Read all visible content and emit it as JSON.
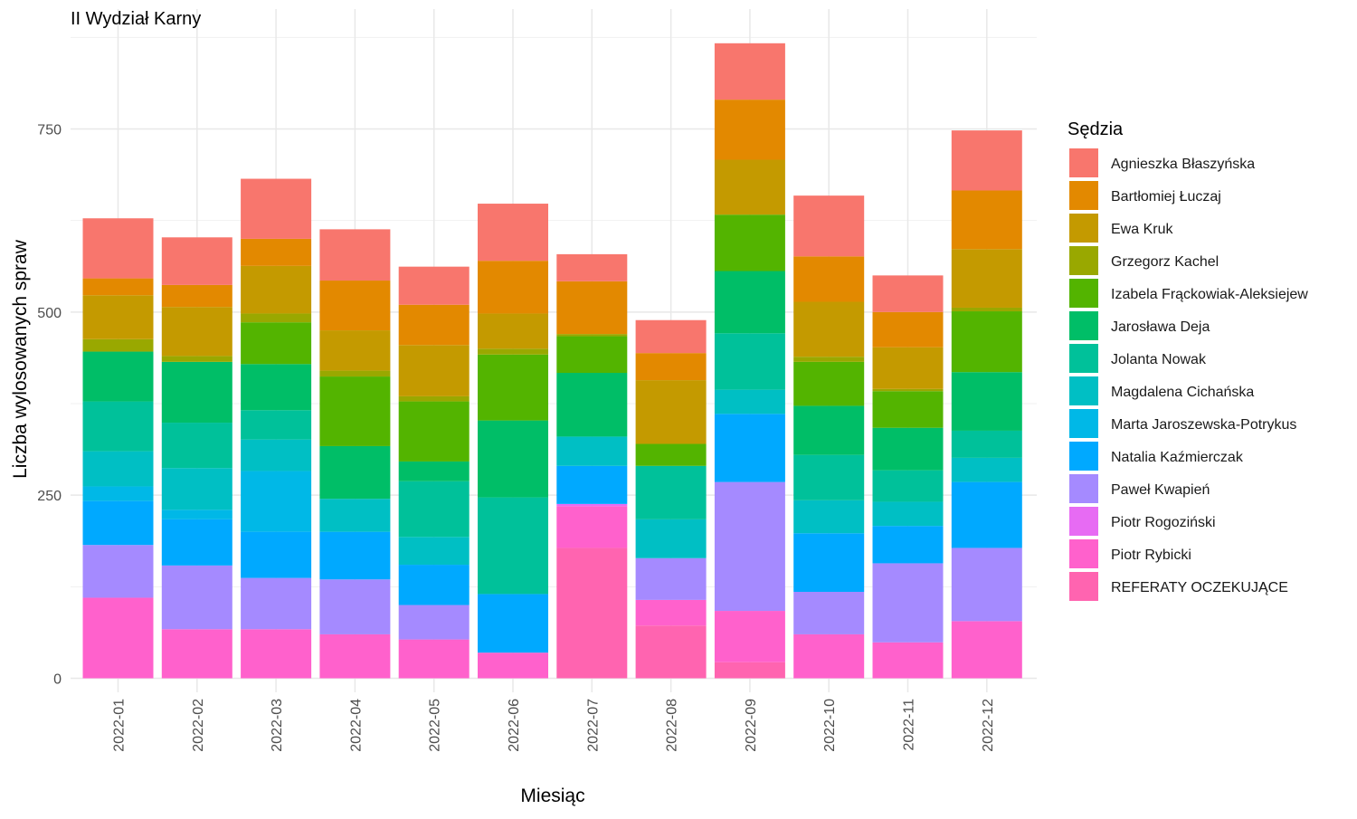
{
  "chart_data": {
    "type": "bar",
    "stacked": true,
    "title": "II Wydział Karny",
    "xlabel": "Miesiąc",
    "ylabel": "Liczba wylosowanych spraw",
    "ylim": [
      0,
      890
    ],
    "yticks": [
      0,
      250,
      500,
      750
    ],
    "grid": true,
    "legend": {
      "title": "Sędzia",
      "position": "right"
    },
    "categories": [
      "2022-01",
      "2022-02",
      "2022-03",
      "2022-04",
      "2022-05",
      "2022-06",
      "2022-07",
      "2022-08",
      "2022-09",
      "2022-10",
      "2022-11",
      "2022-12"
    ],
    "series": [
      {
        "name": "REFERATY OCZEKUJĄCE",
        "color": "#FF64B0",
        "values": [
          0,
          0,
          0,
          0,
          0,
          0,
          178,
          72,
          22,
          0,
          0,
          0
        ]
      },
      {
        "name": "Piotr Rybicki",
        "color": "#FF61CC",
        "values": [
          110,
          67,
          67,
          60,
          53,
          35,
          57,
          35,
          70,
          60,
          49,
          78
        ]
      },
      {
        "name": "Piotr Rogoziński",
        "color": "#E76BF3",
        "values": [
          0,
          0,
          0,
          0,
          0,
          0,
          3,
          0,
          0,
          0,
          0,
          0
        ]
      },
      {
        "name": "Paweł Kwapień",
        "color": "#A58AFF",
        "values": [
          72,
          87,
          70,
          75,
          47,
          0,
          0,
          57,
          176,
          58,
          108,
          100
        ]
      },
      {
        "name": "Natalia Kaźmierczak",
        "color": "#00A9FF",
        "values": [
          60,
          63,
          63,
          65,
          55,
          80,
          52,
          0,
          93,
          80,
          51,
          90
        ]
      },
      {
        "name": "Marta Jaroszewska-Potrykus",
        "color": "#00B8E7",
        "values": [
          20,
          13,
          83,
          0,
          0,
          0,
          0,
          0,
          0,
          0,
          0,
          0
        ]
      },
      {
        "name": "Magdalena Cichańska",
        "color": "#00BFC4",
        "values": [
          48,
          57,
          43,
          45,
          38,
          0,
          40,
          53,
          33,
          45,
          33,
          33
        ]
      },
      {
        "name": "Jolanta Nowak",
        "color": "#00C19A",
        "values": [
          68,
          62,
          40,
          0,
          76,
          132,
          0,
          73,
          77,
          62,
          43,
          37
        ]
      },
      {
        "name": "Jarosława Deja",
        "color": "#00BE67",
        "values": [
          68,
          83,
          63,
          72,
          27,
          105,
          87,
          0,
          85,
          67,
          58,
          80
        ]
      },
      {
        "name": "Izabela Frąckowiak-Aleksiejew",
        "color": "#53B400",
        "values": [
          0,
          0,
          57,
          95,
          82,
          90,
          50,
          30,
          77,
          60,
          50,
          83
        ]
      },
      {
        "name": "Grzegorz Kachel",
        "color": "#99A800",
        "values": [
          17,
          8,
          12,
          8,
          7,
          8,
          3,
          0,
          0,
          7,
          3,
          5
        ]
      },
      {
        "name": "Ewa Kruk",
        "color": "#C49A00",
        "values": [
          60,
          67,
          65,
          55,
          70,
          48,
          0,
          87,
          75,
          75,
          57,
          80
        ]
      },
      {
        "name": "Bartłomiej Łuczaj",
        "color": "#E38900",
        "values": [
          23,
          30,
          37,
          68,
          55,
          72,
          72,
          37,
          82,
          62,
          48,
          80
        ]
      },
      {
        "name": "Agnieszka Błaszyńska",
        "color": "#F8766D",
        "values": [
          82,
          65,
          82,
          70,
          52,
          78,
          37,
          45,
          77,
          83,
          50,
          82
        ]
      }
    ]
  }
}
